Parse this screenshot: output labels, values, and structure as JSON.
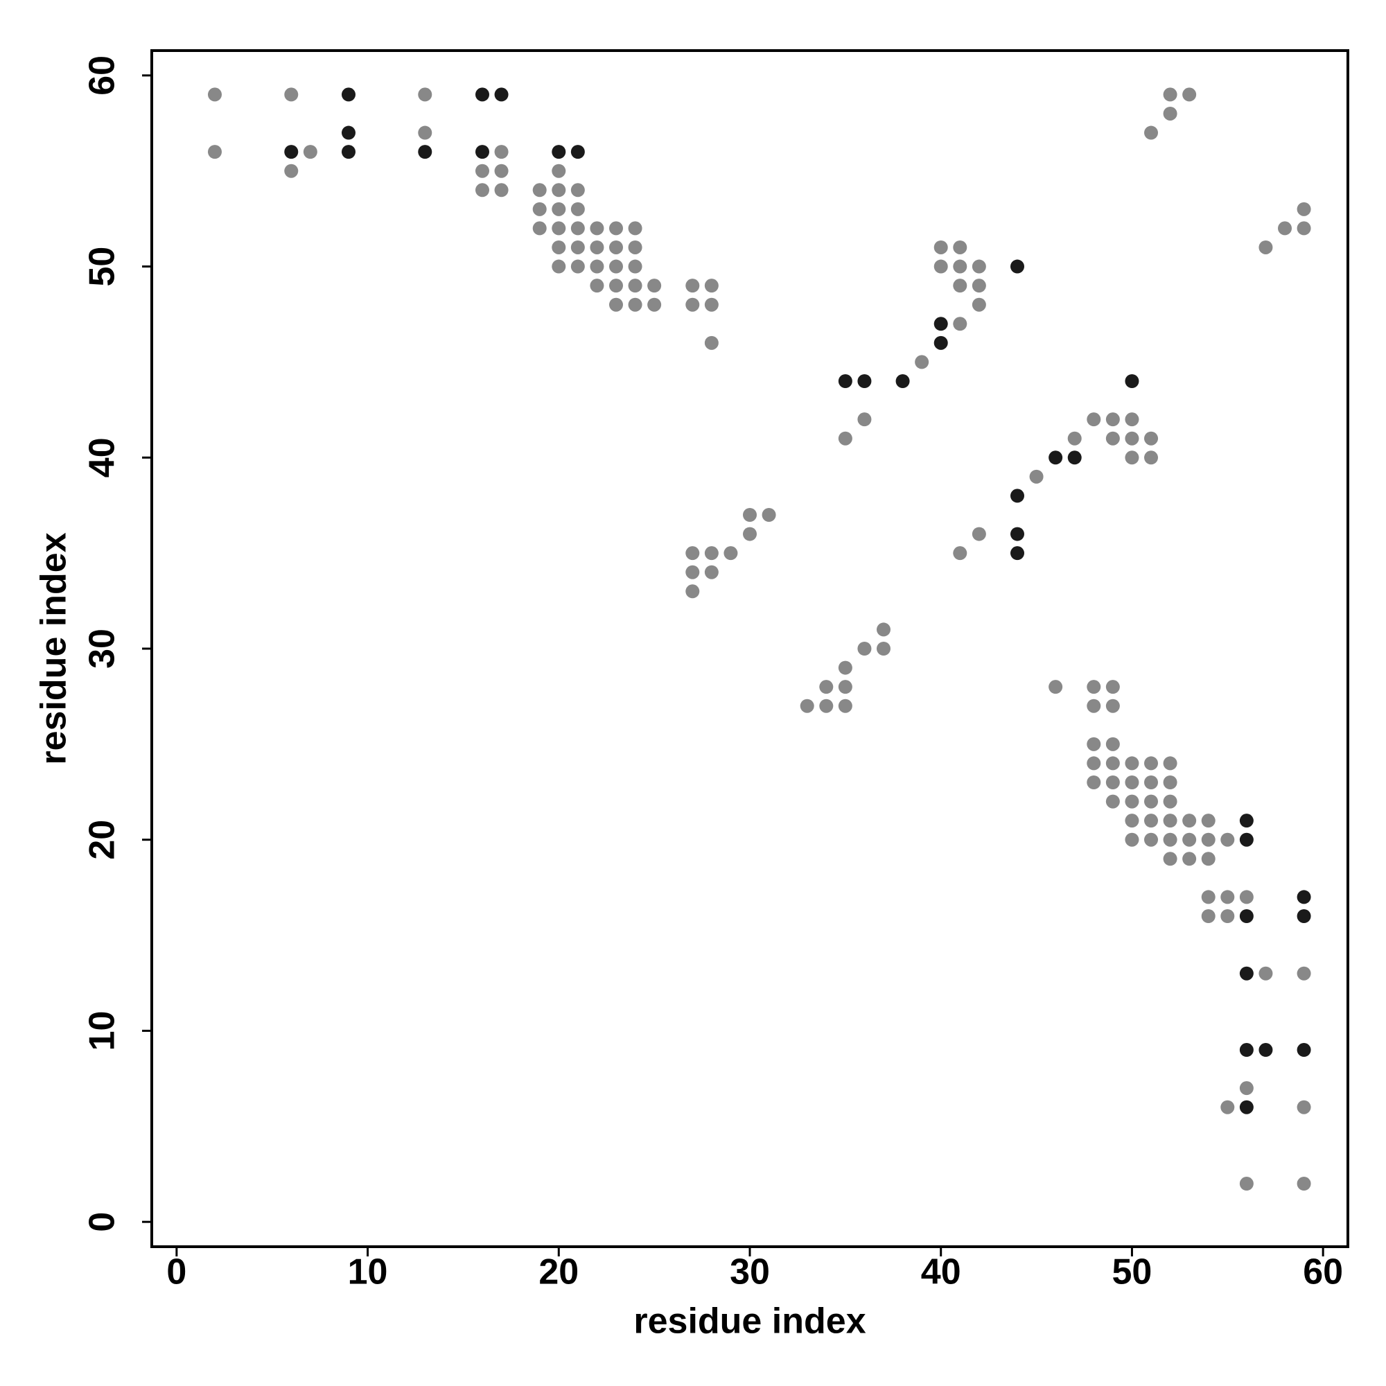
{
  "chart_data": {
    "type": "scatter",
    "xlabel": "residue index",
    "ylabel": "residue index",
    "xlim": [
      -1.3,
      61.3
    ],
    "ylim": [
      -1.3,
      61.3
    ],
    "xticks": [
      0,
      10,
      20,
      30,
      40,
      50,
      60
    ],
    "yticks": [
      0,
      10,
      20,
      30,
      40,
      50,
      60
    ],
    "series": [
      {
        "color": "#888888",
        "x": [
          2,
          6,
          13,
          52,
          53,
          52,
          13,
          51,
          2,
          7,
          17,
          6,
          16,
          17,
          20,
          16,
          17,
          19,
          20,
          21,
          19,
          20,
          21,
          59,
          19,
          20,
          21,
          22,
          23,
          24,
          58,
          59,
          20,
          21,
          22,
          23,
          24,
          40,
          41,
          57,
          20,
          21,
          22,
          23,
          24,
          40,
          41,
          42,
          22,
          23,
          24,
          25,
          27,
          28,
          41,
          42,
          23,
          24,
          25,
          27,
          28,
          42,
          41,
          28,
          39,
          36,
          48,
          49,
          50,
          35,
          47,
          49,
          50,
          51,
          50,
          51,
          45,
          30,
          31,
          30,
          42,
          27,
          28,
          29,
          41,
          27,
          28,
          27,
          37,
          36,
          37,
          35,
          34,
          35,
          46,
          48,
          49,
          33,
          34,
          35,
          48,
          49,
          48,
          49,
          48,
          49,
          50,
          51,
          52,
          48,
          49,
          50,
          51,
          52,
          49,
          50,
          51,
          52,
          50,
          51,
          52,
          53,
          54,
          50,
          51,
          52,
          53,
          54,
          55,
          52,
          53,
          54,
          54,
          55,
          56,
          54,
          55,
          57,
          59,
          56,
          55,
          59,
          56,
          59
        ],
        "y": [
          59,
          59,
          59,
          59,
          59,
          58,
          57,
          57,
          56,
          56,
          56,
          55,
          55,
          55,
          55,
          54,
          54,
          54,
          54,
          54,
          53,
          53,
          53,
          53,
          52,
          52,
          52,
          52,
          52,
          52,
          52,
          52,
          51,
          51,
          51,
          51,
          51,
          51,
          51,
          51,
          50,
          50,
          50,
          50,
          50,
          50,
          50,
          50,
          49,
          49,
          49,
          49,
          49,
          49,
          49,
          49,
          48,
          48,
          48,
          48,
          48,
          48,
          47,
          46,
          45,
          42,
          42,
          42,
          42,
          41,
          41,
          41,
          41,
          41,
          40,
          40,
          39,
          37,
          37,
          36,
          36,
          35,
          35,
          35,
          35,
          34,
          34,
          33,
          31,
          30,
          30,
          29,
          28,
          28,
          28,
          28,
          28,
          27,
          27,
          27,
          27,
          27,
          25,
          25,
          24,
          24,
          24,
          24,
          24,
          23,
          23,
          23,
          23,
          23,
          22,
          22,
          22,
          22,
          21,
          21,
          21,
          21,
          21,
          20,
          20,
          20,
          20,
          20,
          20,
          19,
          19,
          19,
          17,
          17,
          17,
          16,
          16,
          13,
          13,
          7,
          6,
          6,
          2,
          2
        ]
      },
      {
        "color": "#1a1a1a",
        "x": [
          9,
          16,
          17,
          9,
          6,
          9,
          13,
          16,
          20,
          21,
          44,
          40,
          40,
          35,
          36,
          38,
          50,
          46,
          47,
          44,
          44,
          44,
          56,
          56,
          59,
          56,
          59,
          56,
          56,
          57,
          59,
          56
        ],
        "y": [
          59,
          59,
          59,
          57,
          56,
          56,
          56,
          56,
          56,
          56,
          50,
          47,
          46,
          44,
          44,
          44,
          44,
          40,
          40,
          38,
          36,
          35,
          21,
          20,
          17,
          16,
          16,
          13,
          9,
          9,
          9,
          6
        ]
      }
    ]
  }
}
